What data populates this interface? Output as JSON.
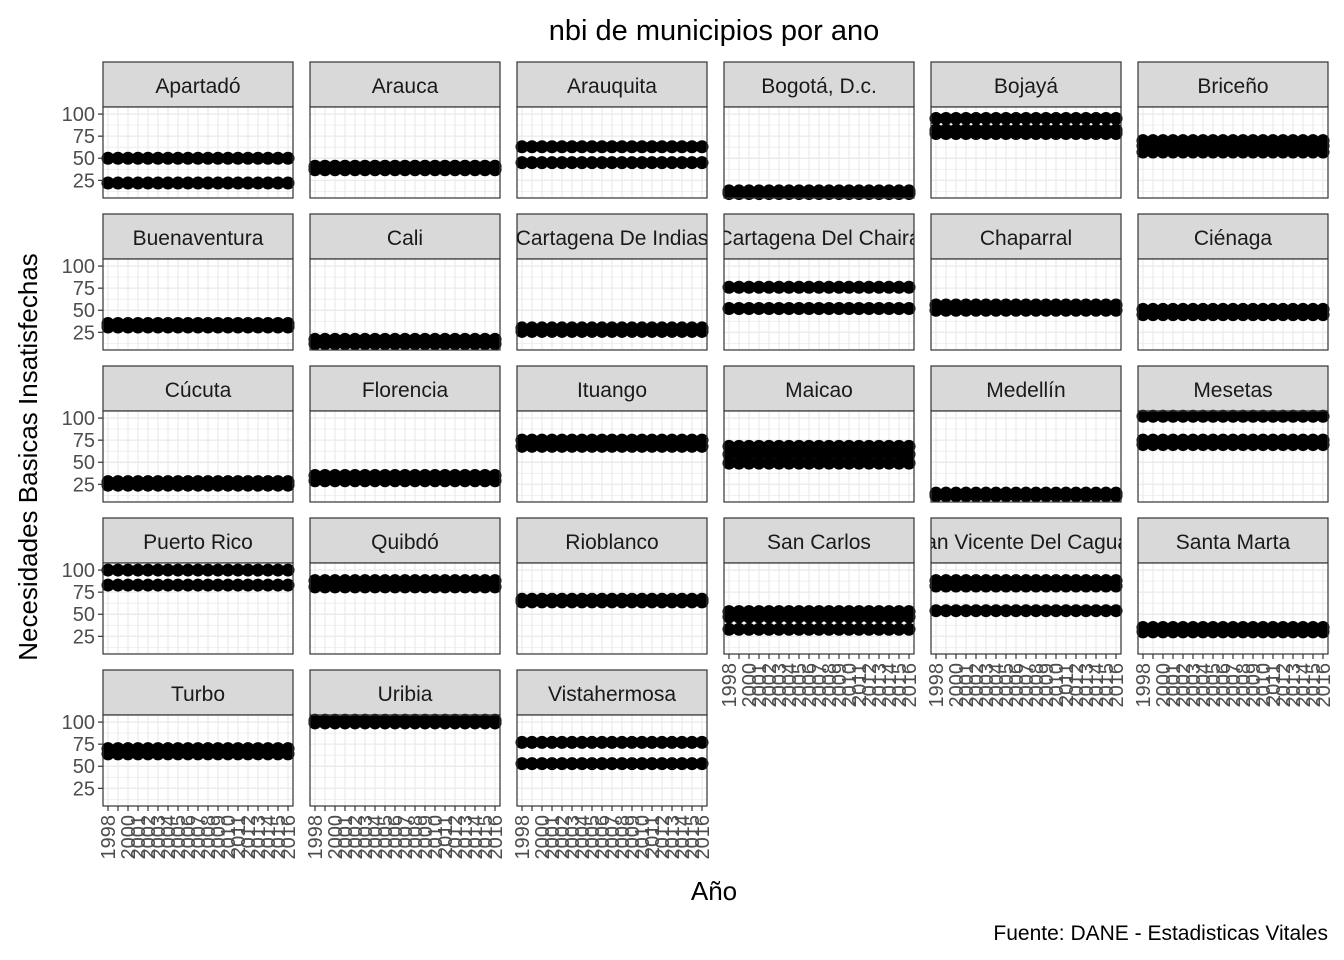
{
  "chart_data": {
    "type": "scatter",
    "facet": "wrap",
    "title": "nbi de municipios por ano",
    "xlabel": "Año",
    "ylabel": "Necesidades Basicas Insatisfechas",
    "caption": "Fuente: DANE - Estadisticas Vitales",
    "x_ticks": [
      1998,
      2000,
      2001,
      2002,
      2003,
      2004,
      2005,
      2006,
      2007,
      2008,
      2009,
      2010,
      2011,
      2012,
      2013,
      2014,
      2015,
      2016
    ],
    "y_ticks": [
      25,
      50,
      75,
      100
    ],
    "ylim": [
      5,
      108
    ],
    "xlim": [
      1998,
      2016
    ],
    "grid": true,
    "panels": [
      {
        "name": "Apartadó",
        "levels": [
          50,
          22
        ]
      },
      {
        "name": "Arauca",
        "levels": [
          41,
          37
        ]
      },
      {
        "name": "Arauquita",
        "levels": [
          63,
          45
        ]
      },
      {
        "name": "Bogotá, D.c.",
        "levels": [
          13,
          10
        ]
      },
      {
        "name": "Bojayá",
        "levels": [
          95,
          82,
          78
        ]
      },
      {
        "name": "Briceño",
        "levels": [
          70,
          64,
          57
        ]
      },
      {
        "name": "Buenaventura",
        "levels": [
          35,
          31
        ]
      },
      {
        "name": "Cali",
        "levels": [
          17,
          12
        ]
      },
      {
        "name": "Cartagena De Indias",
        "levels": [
          30,
          26
        ]
      },
      {
        "name": "Cartagena Del Chairá",
        "levels": [
          76,
          52
        ]
      },
      {
        "name": "Chaparral",
        "levels": [
          56,
          50
        ]
      },
      {
        "name": "Ciénaga",
        "levels": [
          51,
          45
        ]
      },
      {
        "name": "Cúcuta",
        "levels": [
          28,
          24
        ]
      },
      {
        "name": "Florencia",
        "levels": [
          35,
          29
        ]
      },
      {
        "name": "Ituango",
        "levels": [
          75,
          68
        ]
      },
      {
        "name": "Maicao",
        "levels": [
          68,
          59,
          49
        ]
      },
      {
        "name": "Medellín",
        "levels": [
          15,
          12
        ]
      },
      {
        "name": "Mesetas",
        "levels": [
          102,
          75,
          70
        ]
      },
      {
        "name": "Puerto Rico",
        "levels": [
          100,
          83
        ]
      },
      {
        "name": "Quibdó",
        "levels": [
          88,
          81
        ]
      },
      {
        "name": "Rioblanco",
        "levels": [
          67,
          64
        ]
      },
      {
        "name": "San Carlos",
        "levels": [
          53,
          47,
          33
        ]
      },
      {
        "name": "San Vicente Del Caguán",
        "levels": [
          88,
          82,
          54
        ]
      },
      {
        "name": "Santa Marta",
        "levels": [
          35,
          30
        ]
      },
      {
        "name": "Turbo",
        "levels": [
          70,
          64
        ]
      },
      {
        "name": "Uribia",
        "levels": [
          102,
          99
        ]
      },
      {
        "name": "Vistahermosa",
        "levels": [
          77,
          53
        ]
      }
    ]
  }
}
